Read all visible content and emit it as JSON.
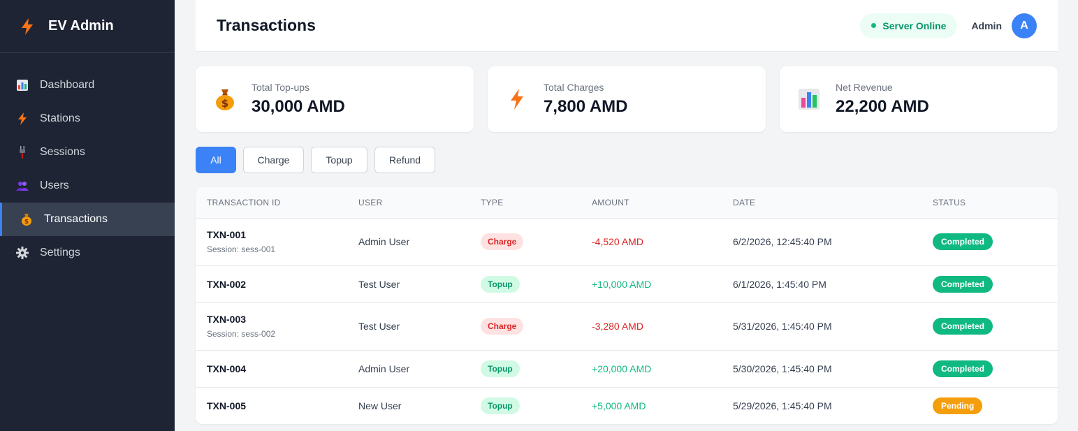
{
  "sidebar": {
    "brand": "EV Admin",
    "brand_icon": "lightning-icon",
    "items": [
      {
        "label": "Dashboard",
        "icon": "bar-chart-icon"
      },
      {
        "label": "Stations",
        "icon": "lightning-icon"
      },
      {
        "label": "Sessions",
        "icon": "plug-icon"
      },
      {
        "label": "Users",
        "icon": "users-icon"
      },
      {
        "label": "Transactions",
        "icon": "money-bag-icon",
        "active": true
      },
      {
        "label": "Settings",
        "icon": "gear-icon"
      }
    ]
  },
  "header": {
    "title": "Transactions",
    "server_status": "Server Online",
    "user_name": "Admin",
    "avatar_initial": "A"
  },
  "stats": [
    {
      "label": "Total Top-ups",
      "value": "30,000 AMD",
      "icon": "money-bag-icon"
    },
    {
      "label": "Total Charges",
      "value": "7,800 AMD",
      "icon": "lightning-icon"
    },
    {
      "label": "Net Revenue",
      "value": "22,200 AMD",
      "icon": "bar-chart-icon"
    }
  ],
  "filters": {
    "all": "All",
    "charge": "Charge",
    "topup": "Topup",
    "refund": "Refund",
    "active": "All"
  },
  "table": {
    "headers": [
      "TRANSACTION ID",
      "USER",
      "TYPE",
      "AMOUNT",
      "DATE",
      "STATUS"
    ],
    "rows": [
      {
        "id": "TXN-001",
        "session": "Session: sess-001",
        "user": "Admin User",
        "type": "Charge",
        "amount": "-4,520 AMD",
        "date": "6/2/2026, 12:45:40 PM",
        "status": "Completed"
      },
      {
        "id": "TXN-002",
        "session": "",
        "user": "Test User",
        "type": "Topup",
        "amount": "+10,000 AMD",
        "date": "6/1/2026, 1:45:40 PM",
        "status": "Completed"
      },
      {
        "id": "TXN-003",
        "session": "Session: sess-002",
        "user": "Test User",
        "type": "Charge",
        "amount": "-3,280 AMD",
        "date": "5/31/2026, 1:45:40 PM",
        "status": "Completed"
      },
      {
        "id": "TXN-004",
        "session": "",
        "user": "Admin User",
        "type": "Topup",
        "amount": "+20,000 AMD",
        "date": "5/30/2026, 1:45:40 PM",
        "status": "Completed"
      },
      {
        "id": "TXN-005",
        "session": "",
        "user": "New User",
        "type": "Topup",
        "amount": "+5,000 AMD",
        "date": "5/29/2026, 1:45:40 PM",
        "status": "Pending"
      }
    ]
  },
  "colors": {
    "sidebar_bg": "#1e2433",
    "accent": "#3b82f6",
    "success": "#10b981",
    "danger": "#dc2626",
    "warning": "#f59e0b"
  }
}
